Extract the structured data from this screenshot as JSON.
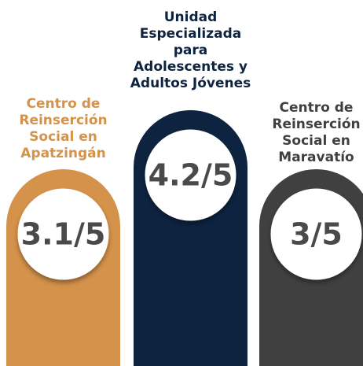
{
  "items": [
    {
      "label": [
        "Centro de",
        "Reinserción",
        "Social en",
        "Apatzingán"
      ],
      "rating": "3.1/5"
    },
    {
      "label": [
        "Unidad",
        "Especializada",
        "para",
        "Adolescentes y",
        "Adultos Jóvenes"
      ],
      "rating": "4.2/5"
    },
    {
      "label": [
        "Centro de",
        "Reinserción",
        "Social en",
        "Maravatío"
      ],
      "rating": "3/5"
    }
  ]
}
